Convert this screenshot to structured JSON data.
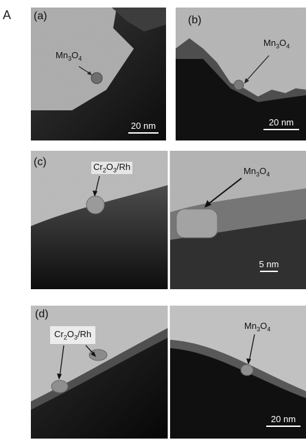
{
  "figure_label": "A",
  "panels": {
    "a": {
      "tag": "(a)",
      "annotation": {
        "element": "Mn",
        "sub1": "3",
        "mid": "O",
        "sub2": "4"
      },
      "scale": "20 nm"
    },
    "b": {
      "tag": "(b)",
      "annotation": {
        "element": "Mn",
        "sub1": "3",
        "mid": "O",
        "sub2": "4"
      },
      "scale": "20 nm"
    },
    "c": {
      "tag": "(c)",
      "annotation_left": {
        "element": "Cr",
        "sub1": "2",
        "mid": "O",
        "sub2": "3",
        "tail": "/Rh"
      },
      "annotation_right": {
        "element": "Mn",
        "sub1": "3",
        "mid": "O",
        "sub2": "4"
      },
      "scale": "5 nm"
    },
    "d": {
      "tag": "(d)",
      "annotation_left": {
        "element": "Cr",
        "sub1": "2",
        "mid": "O",
        "sub2": "3",
        "tail": "/Rh"
      },
      "annotation_right": {
        "element": "Mn",
        "sub1": "3",
        "mid": "O",
        "sub2": "4"
      },
      "scale": "20 nm"
    }
  }
}
